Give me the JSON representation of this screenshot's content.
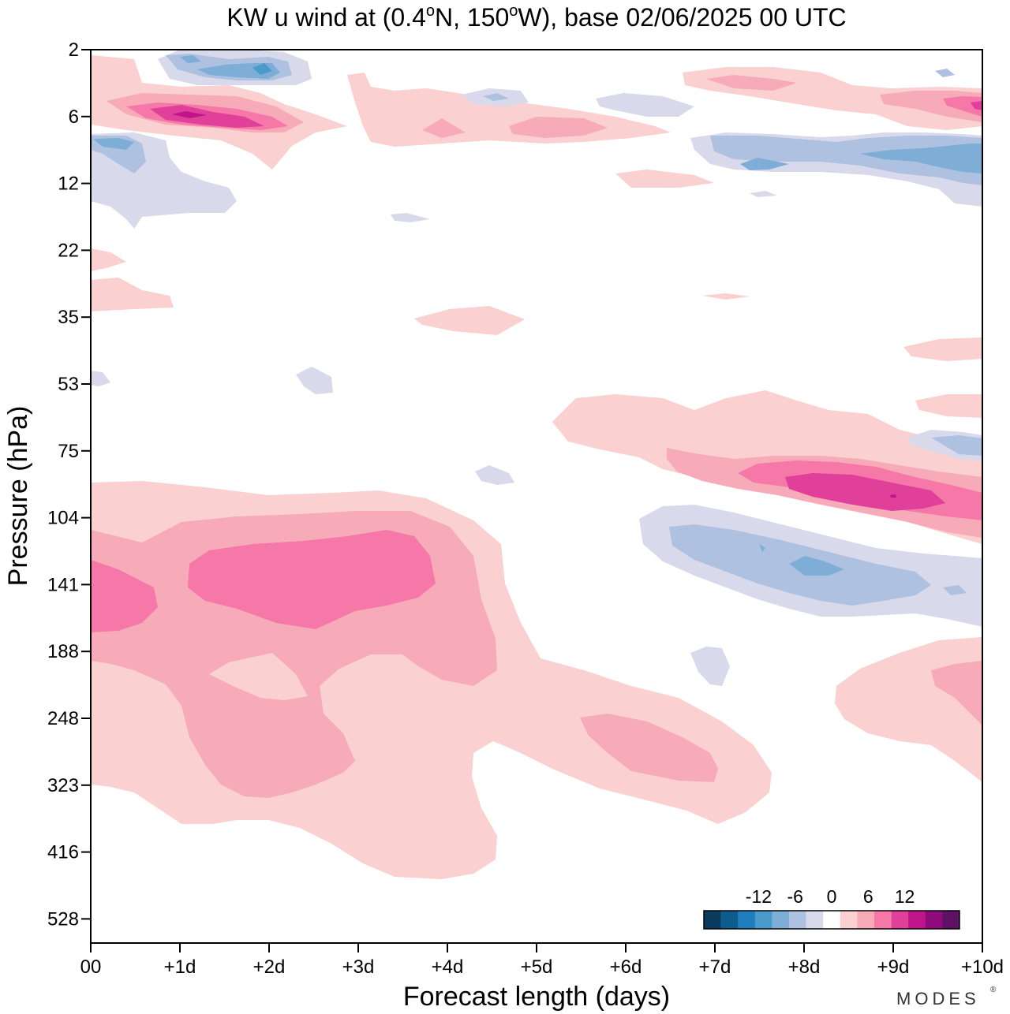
{
  "chart_data": {
    "type": "contour",
    "title": "KW u wind at (0.4°N, 150°W),  base 02/06/2025  00 UTC",
    "title_parts": [
      "KW u wind at (0.4",
      "o",
      "N, 150",
      "o",
      "W),  base 02/06/2025  00 UTC"
    ],
    "xlabel": "Forecast length (days)",
    "ylabel": "Pressure (hPa)",
    "x_ticks": [
      "00",
      "+1d",
      "+2d",
      "+3d",
      "+4d",
      "+5d",
      "+6d",
      "+7d",
      "+8d",
      "+9d",
      "+10d"
    ],
    "x_range_days": [
      0,
      10
    ],
    "y_ticks": [
      2,
      6,
      12,
      22,
      35,
      53,
      75,
      104,
      141,
      188,
      248,
      323,
      416,
      528
    ],
    "y_scale": "log-pressure, inverted",
    "colorbar": {
      "tick_labels": [
        "-12",
        "-6",
        "0",
        "6",
        "12"
      ],
      "tick_values": [
        -12,
        -6,
        0,
        6,
        12
      ],
      "levels": [
        -21,
        -18,
        -15,
        -12,
        -9,
        -6,
        -3,
        0,
        3,
        6,
        9,
        12,
        15,
        18,
        21
      ],
      "colors": [
        "#0b3b5e",
        "#0c5d8e",
        "#1f7fbc",
        "#4a9acb",
        "#7eadd6",
        "#afc1e0",
        "#d9d9ec",
        "#ffffff",
        "#fad0d0",
        "#f7abb8",
        "#f578a8",
        "#e0409a",
        "#c0158a",
        "#8f0a7a",
        "#5e1263"
      ],
      "placement": "bottom-right inside plot"
    },
    "features": [
      {
        "sign": "positive",
        "peak": 12,
        "center_x_days": 1.0,
        "center_hPa": 6
      },
      {
        "sign": "negative",
        "peak": -9,
        "center_x_days": 1.0,
        "center_hPa": 2.5
      },
      {
        "sign": "positive",
        "peak": 12,
        "center_x_days": 9.0,
        "center_hPa": 90
      },
      {
        "sign": "negative",
        "peak": -9,
        "center_x_days": 8.0,
        "center_hPa": 130
      },
      {
        "sign": "positive",
        "peak": 9,
        "center_x_days": 2.0,
        "center_hPa": 141
      },
      {
        "sign": "positive",
        "peak": 6,
        "center_x_days": 6.5,
        "center_hPa": 280
      },
      {
        "sign": "negative",
        "peak": -9,
        "center_x_days": 9.5,
        "center_hPa": 10
      }
    ],
    "grid": false,
    "legend": "colorbar"
  },
  "branding": {
    "logo_text": "MODES",
    "logo_mark": "®"
  }
}
